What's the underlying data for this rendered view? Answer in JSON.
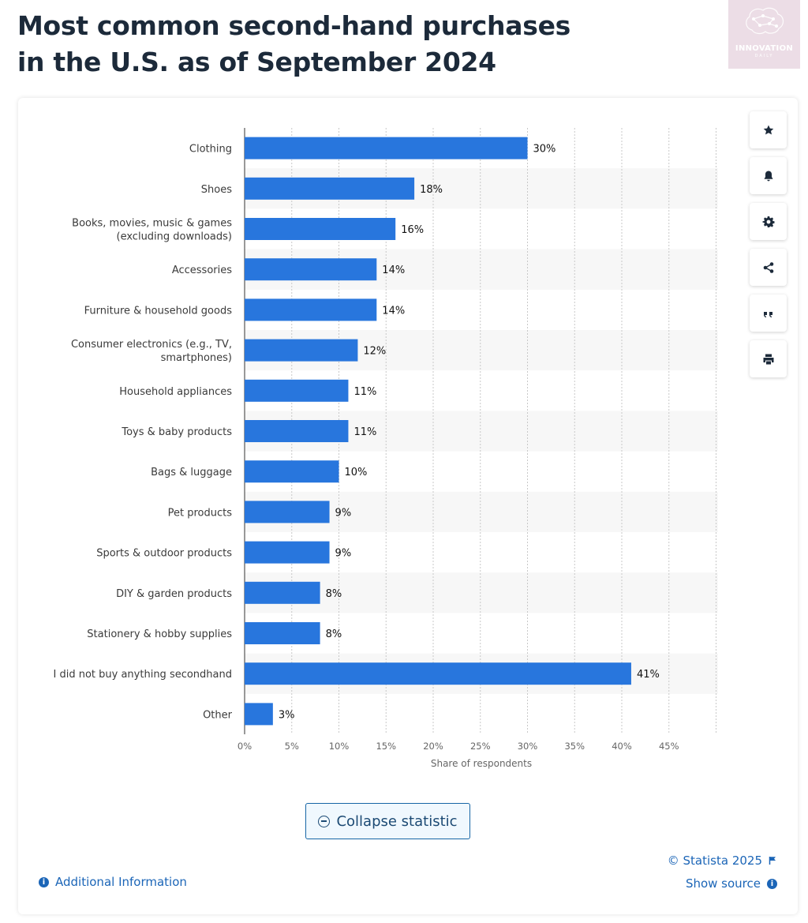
{
  "page": {
    "title_line1": "Most common second-hand purchases",
    "title_line2": "in the U.S. as of September 2024"
  },
  "brand": {
    "text": "INNOVATION",
    "subtext": "DAILY"
  },
  "toolbar": {
    "items": [
      {
        "name": "favorite-button",
        "icon": "star-icon"
      },
      {
        "name": "notification-button",
        "icon": "bell-icon"
      },
      {
        "name": "settings-button",
        "icon": "gear-icon"
      },
      {
        "name": "share-button",
        "icon": "share-icon"
      },
      {
        "name": "cite-button",
        "icon": "quote-icon"
      },
      {
        "name": "print-button",
        "icon": "printer-icon"
      }
    ]
  },
  "colors": {
    "bar": "#2876dd",
    "title": "#1c2a3a",
    "link": "#1b65b7"
  },
  "chart_data": {
    "type": "bar",
    "orientation": "horizontal",
    "categories": [
      [
        "Clothing"
      ],
      [
        "Shoes"
      ],
      [
        "Books, movies, music & games",
        "(excluding downloads)"
      ],
      [
        "Accessories"
      ],
      [
        "Furniture & household goods"
      ],
      [
        "Consumer electronics (e.g., TV,",
        "smartphones)"
      ],
      [
        "Household appliances"
      ],
      [
        "Toys & baby products"
      ],
      [
        "Bags & luggage"
      ],
      [
        "Pet products"
      ],
      [
        "Sports & outdoor products"
      ],
      [
        "DIY & garden products"
      ],
      [
        "Stationery & hobby supplies"
      ],
      [
        "I did not buy anything secondhand"
      ],
      [
        "Other"
      ]
    ],
    "values": [
      30,
      18,
      16,
      14,
      14,
      12,
      11,
      11,
      10,
      9,
      9,
      8,
      8,
      41,
      3
    ],
    "value_labels": [
      "30%",
      "18%",
      "16%",
      "14%",
      "14%",
      "12%",
      "11%",
      "11%",
      "10%",
      "9%",
      "9%",
      "8%",
      "8%",
      "41%",
      "3%"
    ],
    "x_ticks": [
      0,
      5,
      10,
      15,
      20,
      25,
      30,
      35,
      40,
      45
    ],
    "x_tick_labels": [
      "0%",
      "5%",
      "10%",
      "15%",
      "20%",
      "25%",
      "30%",
      "35%",
      "40%",
      "45%"
    ],
    "xlim": [
      0,
      50
    ],
    "xlabel": "Share of respondents",
    "grid": true
  },
  "footer": {
    "collapse_label": "Collapse statistic",
    "additional_info": "Additional Information",
    "copyright": "© Statista 2025",
    "show_source": "Show source"
  }
}
